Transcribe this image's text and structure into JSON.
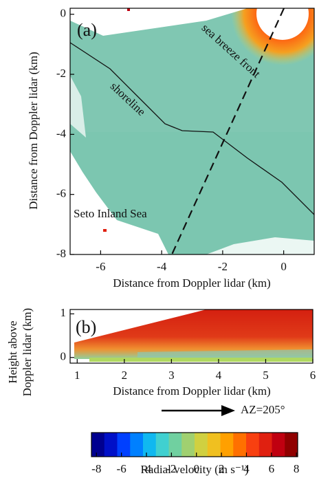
{
  "chart_data": [
    {
      "type": "ppi",
      "panel_label": "(a)",
      "xlabel": "Distance from Doppler lidar (km)",
      "ylabel": "Distance from Doppler lidar (km)",
      "xlim": [
        -7,
        1
      ],
      "ylim": [
        -8,
        0.2
      ],
      "xticks": [
        -6,
        -4,
        -2,
        0
      ],
      "yticks": [
        -8,
        -6,
        -4,
        -2,
        0
      ],
      "annotations": [
        "sea breeze front",
        "shoreline",
        "Seto Inland Sea"
      ]
    },
    {
      "type": "rhi",
      "panel_label": "(b)",
      "xlabel": "Distance from Doppler lidar (km)",
      "ylabel": [
        "Height above",
        "Doppler lidar (km)"
      ],
      "xlim": [
        0.85,
        6
      ],
      "ylim": [
        -0.13,
        1.1
      ],
      "xticks": [
        1,
        2,
        3,
        4,
        5,
        6
      ],
      "yticks": [
        0,
        1
      ],
      "annotation": "AZ=205°"
    },
    {
      "type": "colorbar",
      "label": "Radial velocity (m s⁻¹)",
      "xlim": [
        -8.4,
        8.1
      ],
      "xticks": [
        -8,
        -6,
        -4,
        -2,
        0,
        2,
        4,
        6,
        8
      ],
      "colors": [
        "#00008f",
        "#0010c8",
        "#0040ff",
        "#0080ff",
        "#10b8f0",
        "#40d0d0",
        "#70d0a0",
        "#a0d070",
        "#d0d040",
        "#f0c020",
        "#ffa000",
        "#ff7000",
        "#f84010",
        "#e02010",
        "#c00010",
        "#900000"
      ]
    }
  ]
}
